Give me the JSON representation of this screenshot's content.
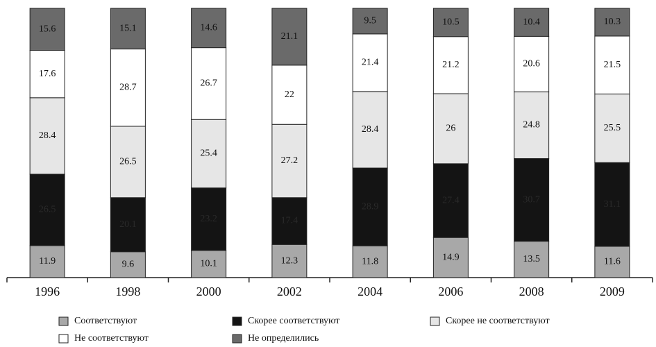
{
  "chart_data": {
    "type": "stacked_bar",
    "categories": [
      "1996",
      "1998",
      "2000",
      "2002",
      "2004",
      "2006",
      "2008",
      "2009"
    ],
    "series": [
      {
        "name": "Соответствуют",
        "color": "#a8a8a8",
        "values": [
          11.9,
          9.6,
          10.1,
          12.3,
          11.8,
          14.9,
          13.5,
          11.6
        ]
      },
      {
        "name": "Скорее соответствуют",
        "color": "#141414",
        "values": [
          26.5,
          20.1,
          23.2,
          17.4,
          28.9,
          27.4,
          30.7,
          31.1
        ]
      },
      {
        "name": "Скорее не соответствуют",
        "color": "#e6e6e6",
        "values": [
          28.4,
          26.5,
          25.4,
          27.2,
          28.4,
          26,
          24.8,
          25.5
        ]
      },
      {
        "name": "Не соответствуют",
        "color": "#ffffff",
        "values": [
          17.6,
          28.7,
          26.7,
          22,
          21.4,
          21.2,
          20.6,
          21.5
        ]
      },
      {
        "name": "Не определились",
        "color": "#6a6a6a",
        "values": [
          15.6,
          15.1,
          14.6,
          21.1,
          9.5,
          10.5,
          10.4,
          10.3
        ]
      }
    ],
    "ylim": [
      0,
      100
    ]
  }
}
